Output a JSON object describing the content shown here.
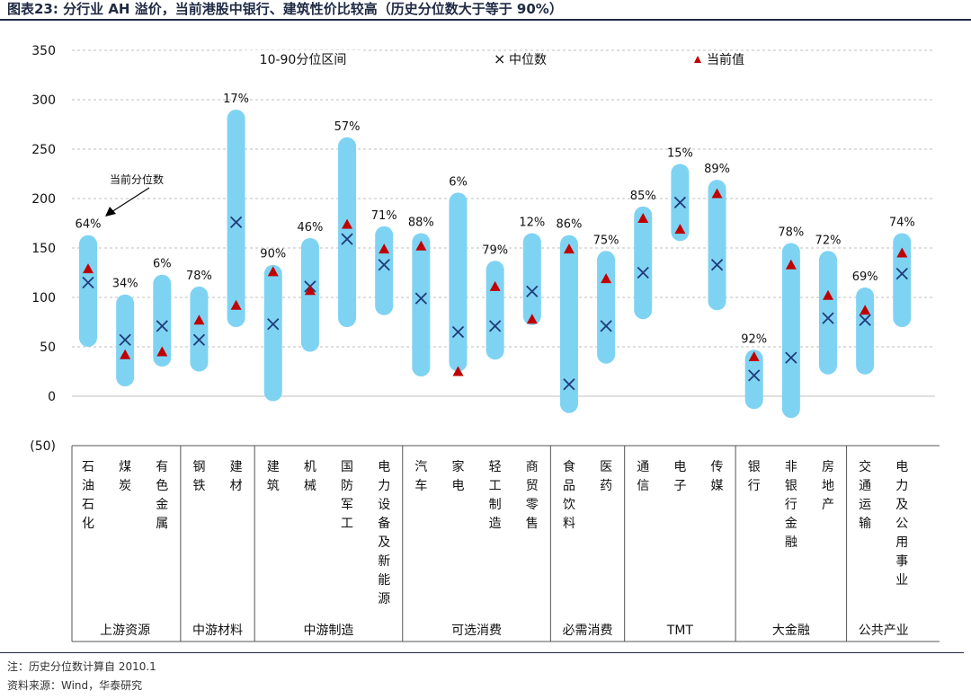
{
  "title": "图表23:  分行业 AH 溢价，当前港股中银行、建筑性价比较高（历史分位数大于等于 90%）",
  "note": "注：历史分位数计算自 2010.1",
  "source": "资料来源：Wind，华泰研究",
  "colors": {
    "range": "#7fd3f2",
    "median": "#1f3a7a",
    "current": "#c00000",
    "grid": "#bfbfbf"
  },
  "chart_data": {
    "type": "range-dot",
    "title": "分行业 AH 溢价",
    "ylim": [
      -50,
      350
    ],
    "yticks": [
      "350",
      "300",
      "250",
      "200",
      "150",
      "100",
      "50",
      "0",
      "(50)"
    ],
    "legend": {
      "range": "10-90分位区间",
      "median": "中位数",
      "current": "当前值"
    },
    "annotation": "当前分位数",
    "categories": [
      {
        "name": "石油石化",
        "group": 0,
        "low": 50,
        "high": 163,
        "median": 115,
        "current": 129,
        "pct": "64%"
      },
      {
        "name": "煤炭",
        "group": 0,
        "low": 10,
        "high": 103,
        "median": 57,
        "current": 42,
        "pct": "34%"
      },
      {
        "name": "有色金属",
        "group": 0,
        "low": 30,
        "high": 123,
        "median": 71,
        "current": 45,
        "pct": "6%"
      },
      {
        "name": "钢铁",
        "group": 1,
        "low": 25,
        "high": 111,
        "median": 57,
        "current": 77,
        "pct": "78%"
      },
      {
        "name": "建材",
        "group": 1,
        "low": 70,
        "high": 290,
        "median": 176,
        "current": 92,
        "pct": "17%"
      },
      {
        "name": "建筑",
        "group": 2,
        "low": -5,
        "high": 133,
        "median": 73,
        "current": 126,
        "pct": "90%"
      },
      {
        "name": "机械",
        "group": 2,
        "low": 45,
        "high": 160,
        "median": 111,
        "current": 107,
        "pct": "46%"
      },
      {
        "name": "国防军工",
        "group": 2,
        "low": 70,
        "high": 262,
        "median": 159,
        "current": 174,
        "pct": "57%"
      },
      {
        "name": "电力设备及新能源",
        "group": 2,
        "low": 82,
        "high": 172,
        "median": 133,
        "current": 149,
        "pct": "71%"
      },
      {
        "name": "汽车",
        "group": 3,
        "low": 20,
        "high": 165,
        "median": 99,
        "current": 152,
        "pct": "88%"
      },
      {
        "name": "家电",
        "group": 3,
        "low": 25,
        "high": 206,
        "median": 65,
        "current": 25,
        "pct": "6%"
      },
      {
        "name": "轻工制造",
        "group": 3,
        "low": 37,
        "high": 137,
        "median": 71,
        "current": 111,
        "pct": "79%"
      },
      {
        "name": "商贸零售",
        "group": 3,
        "low": 72,
        "high": 165,
        "median": 106,
        "current": 78,
        "pct": "12%"
      },
      {
        "name": "食品饮料",
        "group": 4,
        "low": -17,
        "high": 163,
        "median": 12,
        "current": 149,
        "pct": "86%"
      },
      {
        "name": "医药",
        "group": 4,
        "low": 33,
        "high": 147,
        "median": 71,
        "current": 119,
        "pct": "75%"
      },
      {
        "name": "通信",
        "group": 5,
        "low": 78,
        "high": 192,
        "median": 125,
        "current": 180,
        "pct": "85%"
      },
      {
        "name": "电子",
        "group": 5,
        "low": 157,
        "high": 235,
        "median": 196,
        "current": 169,
        "pct": "15%"
      },
      {
        "name": "传媒",
        "group": 5,
        "low": 87,
        "high": 219,
        "median": 133,
        "current": 205,
        "pct": "89%"
      },
      {
        "name": "银行",
        "group": 6,
        "low": -13,
        "high": 47,
        "median": 21,
        "current": 40,
        "pct": "92%"
      },
      {
        "name": "非银行金融",
        "group": 6,
        "low": -22,
        "high": 155,
        "median": 39,
        "current": 133,
        "pct": "78%"
      },
      {
        "name": "房地产",
        "group": 6,
        "low": 22,
        "high": 147,
        "median": 79,
        "current": 102,
        "pct": "72%"
      },
      {
        "name": "交通运输",
        "group": 7,
        "low": 22,
        "high": 110,
        "median": 77,
        "current": 87,
        "pct": "69%"
      },
      {
        "name": "电力及公用事业",
        "group": 7,
        "low": 70,
        "high": 165,
        "median": 124,
        "current": 145,
        "pct": "74%"
      }
    ],
    "groups": [
      "上游资源",
      "中游材料",
      "中游制造",
      "可选消费",
      "必需消费",
      "TMT",
      "大金融",
      "公共产业"
    ]
  }
}
